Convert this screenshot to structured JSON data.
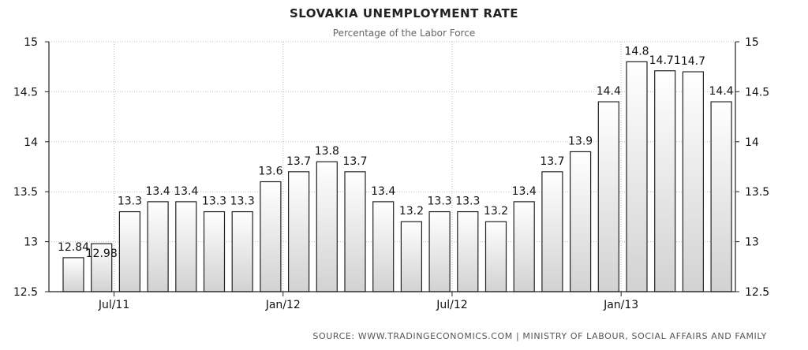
{
  "chart_data": {
    "type": "bar",
    "title": "SLOVAKIA UNEMPLOYMENT RATE",
    "subtitle": "Percentage of the Labor Force",
    "source": "SOURCE: WWW.TRADINGECONOMICS.COM | MINISTRY OF LABOUR, SOCIAL AFFAIRS AND FAMILY",
    "values": [
      12.84,
      12.98,
      13.3,
      13.4,
      13.4,
      13.3,
      13.3,
      13.6,
      13.7,
      13.8,
      13.7,
      13.4,
      13.2,
      13.3,
      13.3,
      13.2,
      13.4,
      13.7,
      13.9,
      14.4,
      14.8,
      14.71,
      14.7,
      14.4
    ],
    "data_labels": [
      "12.84",
      "12.98",
      "13.3",
      "13.4",
      "13.4",
      "13.3",
      "13.3",
      "13.6",
      "13.7",
      "13.8",
      "13.7",
      "13.4",
      "13.2",
      "13.3",
      "13.3",
      "13.2",
      "13.4",
      "13.7",
      "13.9",
      "14.4",
      "14.8",
      "14.71",
      "14.7",
      "14.4"
    ],
    "ylim": [
      12.5,
      15
    ],
    "yticks": [
      "12.5",
      "13",
      "13.5",
      "14",
      "14.5",
      "15"
    ],
    "xticks": [
      {
        "label": "Jul/11",
        "index": 2
      },
      {
        "label": "Jan/12",
        "index": 8
      },
      {
        "label": "Jul/12",
        "index": 14
      },
      {
        "label": "Jan/13",
        "index": 20
      }
    ],
    "grid": true,
    "bar_color": "#e6e6e6",
    "bar_stroke": "#222222"
  }
}
